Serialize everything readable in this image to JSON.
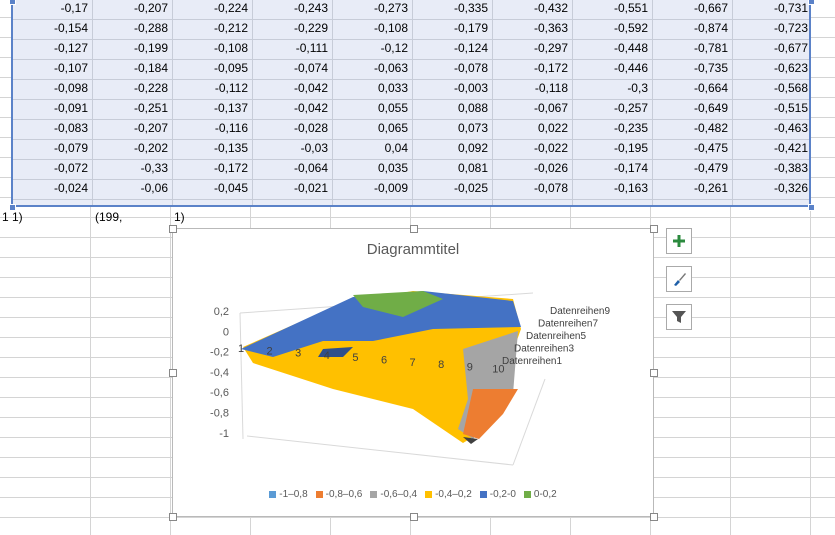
{
  "sheet": {
    "rows": [
      [
        "-0,17",
        "-0,207",
        "-0,224",
        "-0,243",
        "-0,273",
        "-0,335",
        "-0,432",
        "-0,551",
        "-0,667",
        "-0,731"
      ],
      [
        "-0,154",
        "-0,288",
        "-0,212",
        "-0,229",
        "-0,108",
        "-0,179",
        "-0,363",
        "-0,592",
        "-0,874",
        "-0,723"
      ],
      [
        "-0,127",
        "-0,199",
        "-0,108",
        "-0,111",
        "-0,12",
        "-0,124",
        "-0,297",
        "-0,448",
        "-0,781",
        "-0,677"
      ],
      [
        "-0,107",
        "-0,184",
        "-0,095",
        "-0,074",
        "-0,063",
        "-0,078",
        "-0,172",
        "-0,446",
        "-0,735",
        "-0,623"
      ],
      [
        "-0,098",
        "-0,228",
        "-0,112",
        "-0,042",
        "0,033",
        "-0,003",
        "-0,118",
        "-0,3",
        "-0,664",
        "-0,568"
      ],
      [
        "-0,091",
        "-0,251",
        "-0,137",
        "-0,042",
        "0,055",
        "0,088",
        "-0,067",
        "-0,257",
        "-0,649",
        "-0,515"
      ],
      [
        "-0,083",
        "-0,207",
        "-0,116",
        "-0,028",
        "0,065",
        "0,073",
        "0,022",
        "-0,235",
        "-0,482",
        "-0,463"
      ],
      [
        "-0,079",
        "-0,202",
        "-0,135",
        "-0,03",
        "0,04",
        "0,092",
        "-0,022",
        "-0,195",
        "-0,475",
        "-0,421"
      ],
      [
        "-0,072",
        "-0,33",
        "-0,172",
        "-0,064",
        "0,035",
        "0,081",
        "-0,026",
        "-0,174",
        "-0,479",
        "-0,383"
      ],
      [
        "-0,024",
        "-0,06",
        "-0,045",
        "-0,021",
        "-0,009",
        "-0,025",
        "-0,078",
        "-0,163",
        "-0,261",
        "-0,326"
      ]
    ],
    "below_cells": [
      "1 1)",
      "(199,",
      "1)"
    ]
  },
  "chart_data": {
    "type": "surface",
    "title": "Diagrammtitel",
    "z_ticks": [
      "0,2",
      "0",
      "-0,2",
      "-0,4",
      "-0,6",
      "-0,8",
      "-1"
    ],
    "x_ticks": [
      "1",
      "2",
      "3",
      "4",
      "5",
      "6",
      "7",
      "8",
      "9",
      "10"
    ],
    "series_labels": [
      "Datenreihen9",
      "Datenreihen7",
      "Datenreihen5",
      "Datenreihen3",
      "Datenreihen1"
    ],
    "legend": [
      {
        "label": "-1–0,8",
        "color": "#5b9bd5"
      },
      {
        "label": "-0,8–0,6",
        "color": "#ed7d31"
      },
      {
        "label": "-0,6–0,4",
        "color": "#a5a5a5"
      },
      {
        "label": "-0,4–0,2",
        "color": "#ffc000"
      },
      {
        "label": "-0,2-0",
        "color": "#4472c4"
      },
      {
        "label": "0-0,2",
        "color": "#70ad47"
      }
    ]
  }
}
